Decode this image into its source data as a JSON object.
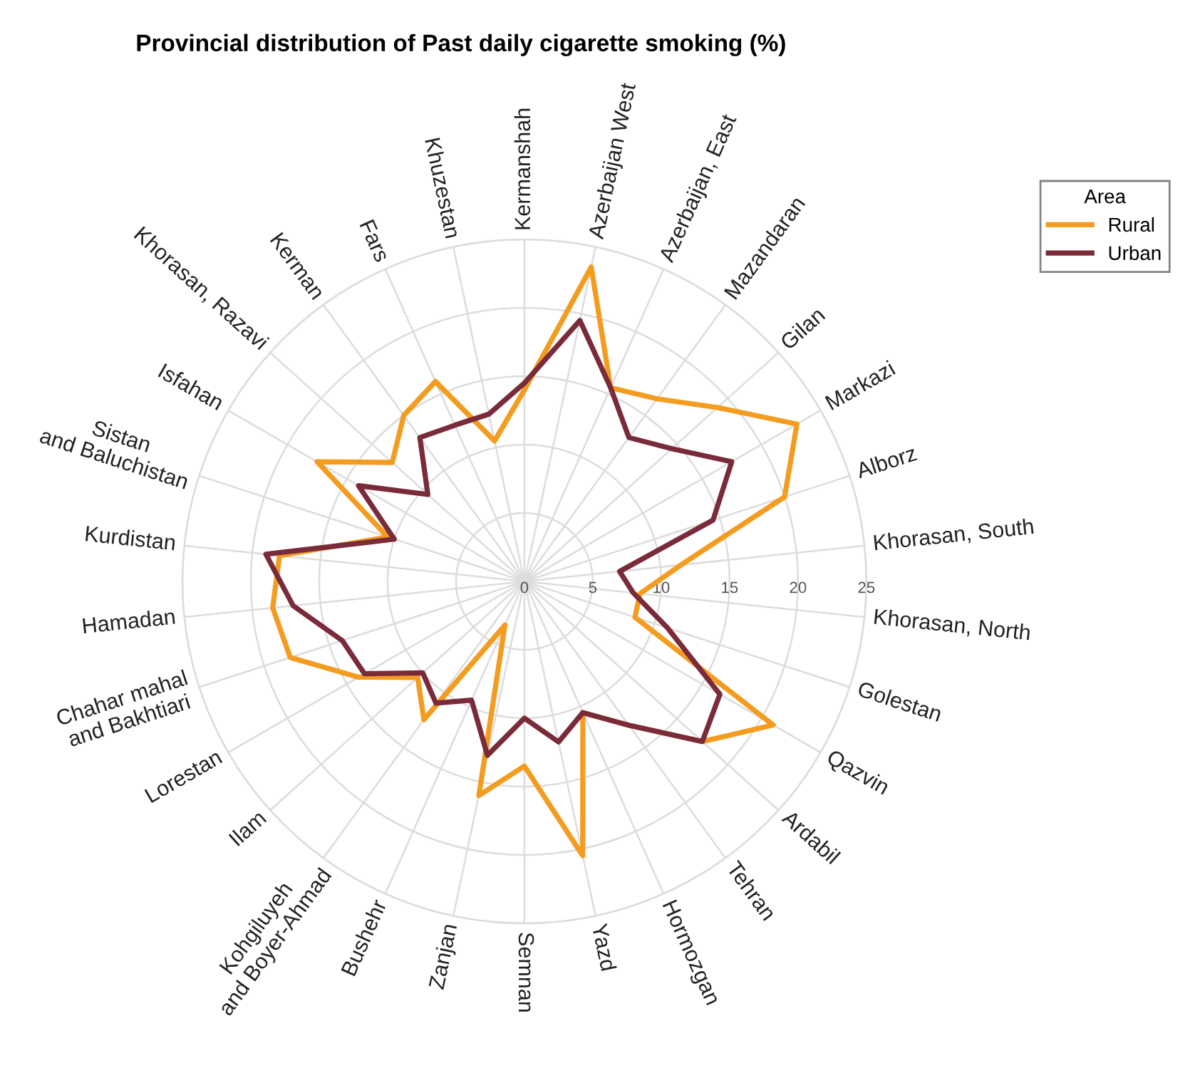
{
  "chart_data": {
    "type": "radar",
    "title": "Provincial distribution of Past daily cigarette smoking (%)",
    "categories": [
      "Kermanshah",
      "Azerbaijan West",
      "Azerbaijan, East",
      "Mazandaran",
      "Gilan",
      "Markazi",
      "Alborz",
      "Khorasan, South",
      "Khorasan, North",
      "Golestan",
      "Qazvin",
      "Ardabil",
      "Tehran",
      "Hormozgan",
      "Yazd",
      "Semnan",
      "Zanjan",
      "Bushehr",
      "Kohgiluyeh\nand Boyer-Ahmad",
      "Ilam",
      "Lorestan",
      "Chahar mahal\nand Bakhtiari",
      "Hamadan",
      "Kurdistan",
      "Sistan\nand Baluchistan",
      "Isfahan",
      "Khorasan, Razavi",
      "Kerman",
      "Fars",
      "Khuzestan"
    ],
    "series": [
      {
        "name": "Rural",
        "color": "#f39c1f",
        "values": [
          14,
          23.5,
          15.5,
          16.5,
          19,
          23,
          20,
          11.5,
          8.5,
          8.5,
          21,
          17.5,
          13,
          10.5,
          20.5,
          13.5,
          16,
          3.5,
          12.5,
          10.5,
          14,
          18,
          18.5,
          18,
          10.5,
          17.5,
          13,
          15,
          16,
          10.5
        ]
      },
      {
        "name": "Urban",
        "color": "#7a2b3a",
        "values": [
          14.5,
          19.5,
          15.5,
          13,
          14.5,
          17.5,
          14.5,
          7,
          8,
          11,
          16.5,
          17.5,
          13,
          10.5,
          12,
          10,
          13,
          9.5,
          11,
          10,
          13.5,
          14,
          17,
          19,
          10,
          14,
          9.5,
          13,
          12.5,
          12.5
        ]
      }
    ],
    "ylim": [
      0,
      25
    ],
    "yticks": [
      0,
      5,
      10,
      15,
      20,
      25
    ],
    "grid": true,
    "legend": "top right",
    "legend_title": "Area"
  }
}
